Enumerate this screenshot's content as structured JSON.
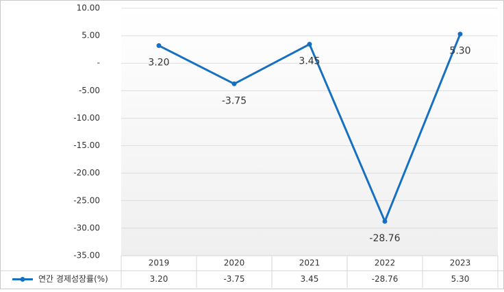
{
  "chart_data": {
    "type": "line",
    "categories": [
      "2019",
      "2020",
      "2021",
      "2022",
      "2023"
    ],
    "series": [
      {
        "name": "연간 경제성장률(%)",
        "color": "#1670c2",
        "values": [
          3.2,
          -3.75,
          3.45,
          -28.76,
          5.3
        ],
        "value_labels": [
          "3.20",
          "-3.75",
          "3.45",
          "-28.76",
          "5.30"
        ]
      }
    ],
    "ylim": [
      -35,
      10
    ],
    "yticks": [
      {
        "value": 10,
        "label": "10.00"
      },
      {
        "value": 5,
        "label": "5.00"
      },
      {
        "value": 0,
        "label": "-"
      },
      {
        "value": -5,
        "label": "-5.00"
      },
      {
        "value": -10,
        "label": "-10.00"
      },
      {
        "value": -15,
        "label": "-15.00"
      },
      {
        "value": -20,
        "label": "-20.00"
      },
      {
        "value": -25,
        "label": "-25.00"
      },
      {
        "value": -30,
        "label": "-30.00"
      },
      {
        "value": -35,
        "label": "-35.00"
      }
    ],
    "grid": true
  }
}
